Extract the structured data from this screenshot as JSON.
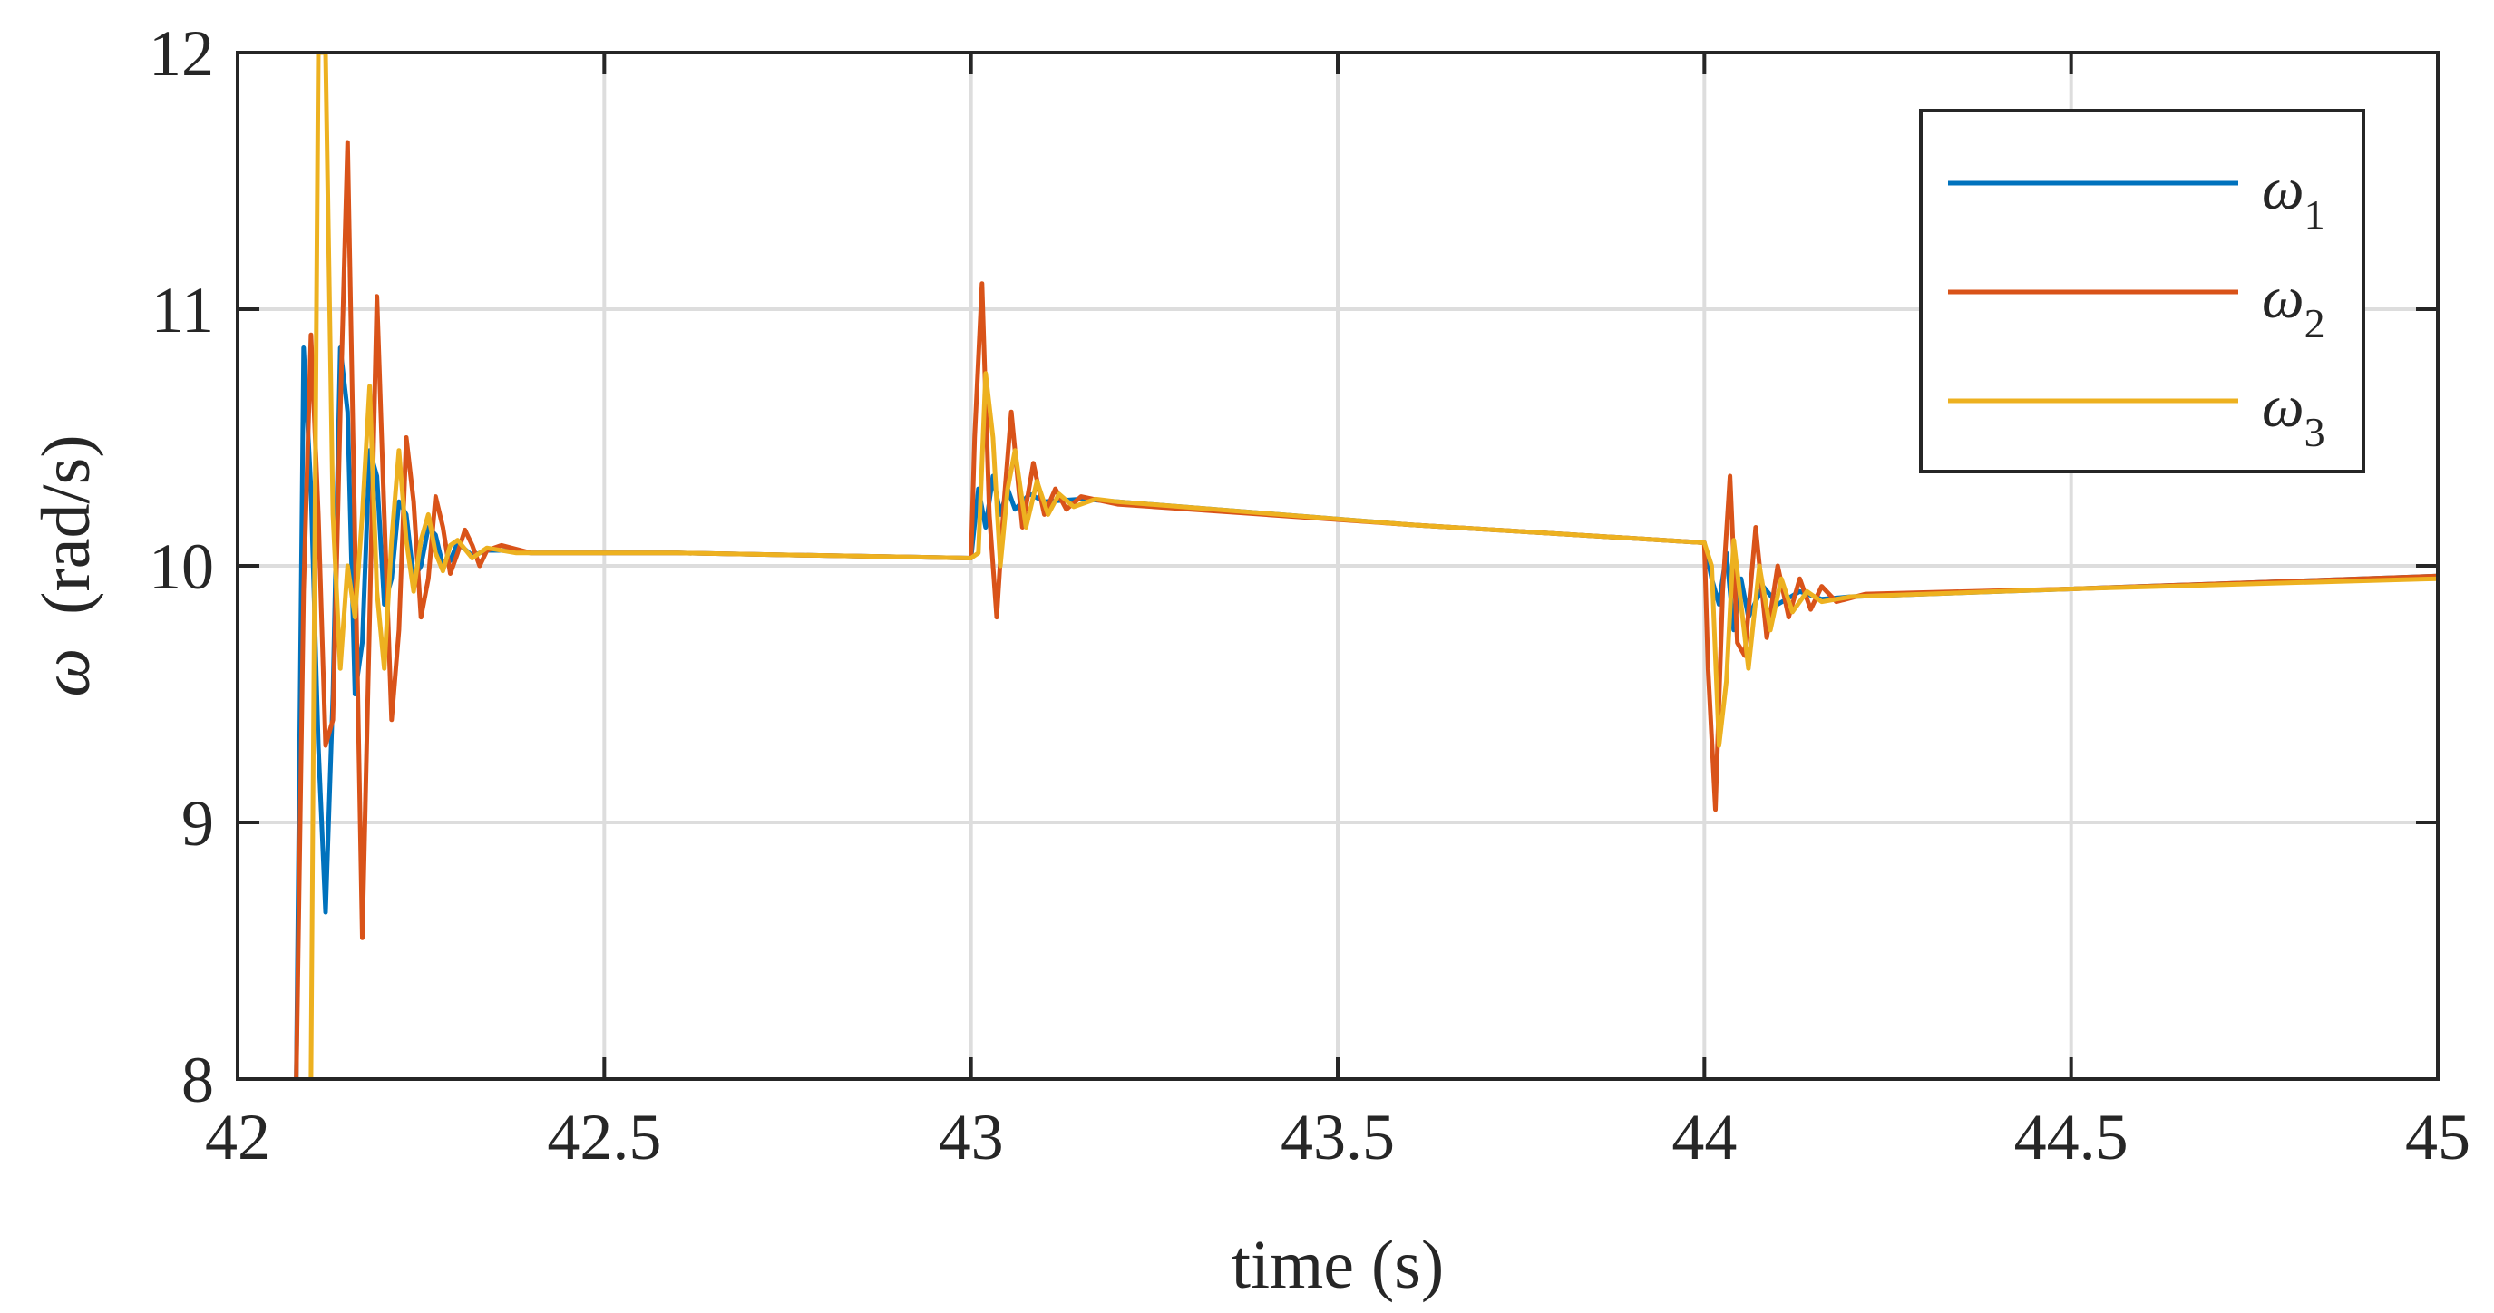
{
  "chart_data": {
    "type": "line",
    "xlabel": "time (s)",
    "ylabel_symbol": "ω",
    "ylabel_unit": "(rad/s)",
    "xlim": [
      42,
      45
    ],
    "ylim": [
      8,
      12
    ],
    "xticks": [
      42,
      42.5,
      43,
      43.5,
      44,
      44.5,
      45
    ],
    "xtick_labels": [
      "42",
      "42.5",
      "43",
      "43.5",
      "44",
      "44.5",
      "45"
    ],
    "yticks": [
      8,
      9,
      10,
      11,
      12
    ],
    "ytick_labels": [
      "8",
      "9",
      "10",
      "11",
      "12"
    ],
    "grid": true,
    "legend_position": "top-right",
    "series": [
      {
        "name_symbol": "ω",
        "name_sub": "1",
        "color": "#0072BD",
        "points": [
          [
            42.08,
            8.0
          ],
          [
            42.09,
            10.85
          ],
          [
            42.1,
            10.3
          ],
          [
            42.11,
            9.3
          ],
          [
            42.12,
            8.65
          ],
          [
            42.13,
            9.5
          ],
          [
            42.14,
            10.85
          ],
          [
            42.15,
            10.6
          ],
          [
            42.16,
            9.5
          ],
          [
            42.17,
            9.7
          ],
          [
            42.18,
            10.45
          ],
          [
            42.19,
            10.35
          ],
          [
            42.2,
            9.85
          ],
          [
            42.21,
            9.95
          ],
          [
            42.22,
            10.25
          ],
          [
            42.23,
            10.2
          ],
          [
            42.24,
            9.95
          ],
          [
            42.25,
            10.0
          ],
          [
            42.26,
            10.15
          ],
          [
            42.27,
            10.12
          ],
          [
            42.28,
            10.0
          ],
          [
            42.29,
            10.02
          ],
          [
            42.3,
            10.09
          ],
          [
            42.32,
            10.04
          ],
          [
            42.34,
            10.06
          ],
          [
            42.36,
            10.06
          ],
          [
            42.4,
            10.05
          ],
          [
            42.6,
            10.05
          ],
          [
            43.0,
            10.03
          ],
          [
            43.01,
            10.3
          ],
          [
            43.02,
            10.15
          ],
          [
            43.03,
            10.35
          ],
          [
            43.04,
            10.2
          ],
          [
            43.05,
            10.3
          ],
          [
            43.06,
            10.22
          ],
          [
            43.08,
            10.28
          ],
          [
            43.1,
            10.25
          ],
          [
            43.15,
            10.26
          ],
          [
            43.2,
            10.25
          ],
          [
            43.6,
            10.16
          ],
          [
            44.0,
            10.09
          ],
          [
            44.01,
            9.95
          ],
          [
            44.02,
            9.85
          ],
          [
            44.03,
            10.05
          ],
          [
            44.04,
            9.75
          ],
          [
            44.05,
            9.95
          ],
          [
            44.06,
            9.8
          ],
          [
            44.08,
            9.92
          ],
          [
            44.1,
            9.85
          ],
          [
            44.13,
            9.9
          ],
          [
            44.16,
            9.87
          ],
          [
            44.2,
            9.88
          ],
          [
            44.5,
            9.91
          ],
          [
            45.0,
            9.96
          ]
        ]
      },
      {
        "name_symbol": "ω",
        "name_sub": "2",
        "color": "#D95319",
        "points": [
          [
            42.08,
            8.0
          ],
          [
            42.09,
            9.9
          ],
          [
            42.1,
            10.9
          ],
          [
            42.11,
            10.2
          ],
          [
            42.12,
            9.3
          ],
          [
            42.13,
            9.4
          ],
          [
            42.14,
            10.6
          ],
          [
            42.15,
            11.65
          ],
          [
            42.16,
            10.1
          ],
          [
            42.17,
            8.55
          ],
          [
            42.18,
            9.8
          ],
          [
            42.19,
            11.05
          ],
          [
            42.2,
            10.2
          ],
          [
            42.21,
            9.4
          ],
          [
            42.22,
            9.75
          ],
          [
            42.23,
            10.5
          ],
          [
            42.24,
            10.25
          ],
          [
            42.25,
            9.8
          ],
          [
            42.26,
            9.95
          ],
          [
            42.27,
            10.27
          ],
          [
            42.28,
            10.15
          ],
          [
            42.29,
            9.97
          ],
          [
            42.3,
            10.05
          ],
          [
            42.31,
            10.14
          ],
          [
            42.32,
            10.08
          ],
          [
            42.33,
            10.0
          ],
          [
            42.34,
            10.06
          ],
          [
            42.36,
            10.08
          ],
          [
            42.4,
            10.05
          ],
          [
            42.6,
            10.05
          ],
          [
            43.0,
            10.03
          ],
          [
            43.005,
            10.5
          ],
          [
            43.015,
            11.1
          ],
          [
            43.025,
            10.2
          ],
          [
            43.035,
            9.8
          ],
          [
            43.045,
            10.25
          ],
          [
            43.055,
            10.6
          ],
          [
            43.07,
            10.15
          ],
          [
            43.085,
            10.4
          ],
          [
            43.1,
            10.2
          ],
          [
            43.115,
            10.3
          ],
          [
            43.13,
            10.22
          ],
          [
            43.15,
            10.27
          ],
          [
            43.2,
            10.24
          ],
          [
            43.6,
            10.16
          ],
          [
            44.0,
            10.09
          ],
          [
            44.005,
            9.6
          ],
          [
            44.015,
            9.05
          ],
          [
            44.025,
            9.9
          ],
          [
            44.035,
            10.35
          ],
          [
            44.045,
            9.7
          ],
          [
            44.055,
            9.65
          ],
          [
            44.07,
            10.15
          ],
          [
            44.085,
            9.72
          ],
          [
            44.1,
            10.0
          ],
          [
            44.115,
            9.8
          ],
          [
            44.13,
            9.95
          ],
          [
            44.145,
            9.83
          ],
          [
            44.16,
            9.92
          ],
          [
            44.18,
            9.86
          ],
          [
            44.22,
            9.89
          ],
          [
            44.5,
            9.91
          ],
          [
            45.0,
            9.96
          ]
        ]
      },
      {
        "name_symbol": "ω",
        "name_sub": "3",
        "color": "#EDB120",
        "points": [
          [
            42.1,
            8.0
          ],
          [
            42.11,
            12.0
          ],
          [
            42.12,
            12.0
          ],
          [
            42.13,
            10.2
          ],
          [
            42.14,
            9.6
          ],
          [
            42.15,
            10.0
          ],
          [
            42.16,
            9.8
          ],
          [
            42.17,
            10.2
          ],
          [
            42.18,
            10.7
          ],
          [
            42.19,
            9.9
          ],
          [
            42.2,
            9.6
          ],
          [
            42.21,
            10.1
          ],
          [
            42.22,
            10.45
          ],
          [
            42.23,
            10.1
          ],
          [
            42.24,
            9.9
          ],
          [
            42.25,
            10.1
          ],
          [
            42.26,
            10.2
          ],
          [
            42.27,
            10.05
          ],
          [
            42.28,
            9.98
          ],
          [
            42.29,
            10.08
          ],
          [
            42.3,
            10.1
          ],
          [
            42.32,
            10.03
          ],
          [
            42.34,
            10.07
          ],
          [
            42.38,
            10.05
          ],
          [
            42.6,
            10.05
          ],
          [
            43.0,
            10.03
          ],
          [
            43.01,
            10.05
          ],
          [
            43.02,
            10.75
          ],
          [
            43.03,
            10.5
          ],
          [
            43.04,
            10.0
          ],
          [
            43.05,
            10.3
          ],
          [
            43.06,
            10.45
          ],
          [
            43.075,
            10.15
          ],
          [
            43.09,
            10.33
          ],
          [
            43.105,
            10.2
          ],
          [
            43.12,
            10.28
          ],
          [
            43.14,
            10.23
          ],
          [
            43.17,
            10.26
          ],
          [
            43.2,
            10.25
          ],
          [
            43.6,
            10.16
          ],
          [
            44.0,
            10.09
          ],
          [
            44.01,
            10.0
          ],
          [
            44.02,
            9.3
          ],
          [
            44.03,
            9.55
          ],
          [
            44.04,
            10.1
          ],
          [
            44.05,
            9.85
          ],
          [
            44.06,
            9.6
          ],
          [
            44.075,
            10.0
          ],
          [
            44.09,
            9.75
          ],
          [
            44.105,
            9.95
          ],
          [
            44.12,
            9.82
          ],
          [
            44.14,
            9.9
          ],
          [
            44.16,
            9.86
          ],
          [
            44.2,
            9.88
          ],
          [
            44.5,
            9.91
          ],
          [
            45.0,
            9.95
          ]
        ]
      }
    ]
  }
}
